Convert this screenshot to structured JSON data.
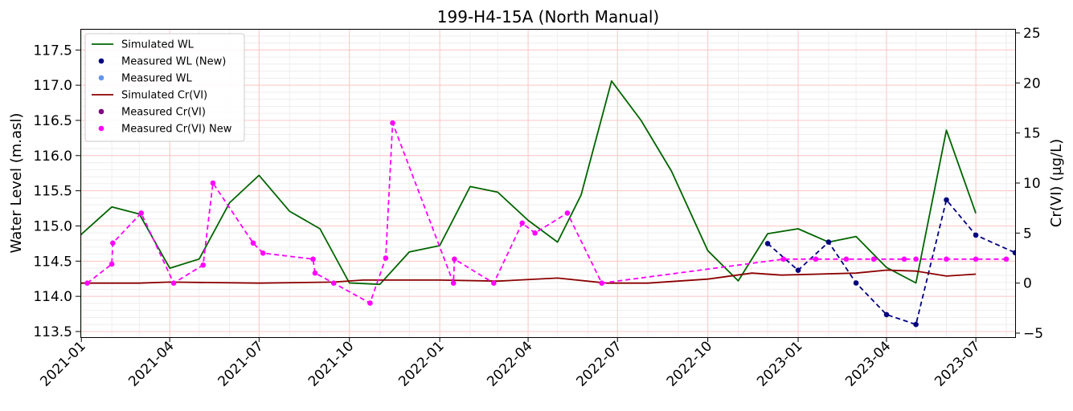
{
  "chart_data": {
    "type": "line",
    "title": "199-H4-15A (North Manual)",
    "ylabel": "Water Level (m.asl)",
    "y2label": "Cr(VI) (µg/L)",
    "xlim": [
      "2020-12-31",
      "2023-08-10"
    ],
    "ylim": [
      113.42,
      117.8
    ],
    "y2lim": [
      -5.4,
      25.4
    ],
    "x_ticks": [
      "2021-01",
      "2021-04",
      "2021-07",
      "2021-10",
      "2022-01",
      "2022-04",
      "2022-07",
      "2022-10",
      "2023-01",
      "2023-04",
      "2023-07"
    ],
    "y_ticks": [
      "113.5",
      "114.0",
      "114.5",
      "115.0",
      "115.5",
      "116.0",
      "116.5",
      "117.0",
      "117.5"
    ],
    "y2_ticks": [
      "−5",
      "0",
      "5",
      "10",
      "15",
      "20",
      "25"
    ],
    "grid": "major and minor",
    "legend_position": "upper left",
    "legend": [
      "Simulated WL",
      "Measured WL (New)",
      "Measured WL",
      "Simulated Cr(VI)",
      "Measured Cr(VI)",
      "Measured Cr(VI) New"
    ],
    "series": [
      {
        "name": "Simulated WL",
        "axis": "left",
        "style": "solid",
        "color": "#006400",
        "markers": false,
        "points": [
          [
            "2020-12-31",
            114.87
          ],
          [
            "2021-02-01",
            115.27
          ],
          [
            "2021-03-01",
            115.17
          ],
          [
            "2021-04-01",
            114.4
          ],
          [
            "2021-05-01",
            114.53
          ],
          [
            "2021-06-01",
            115.33
          ],
          [
            "2021-07-01",
            115.72
          ],
          [
            "2021-08-01",
            115.21
          ],
          [
            "2021-09-01",
            114.96
          ],
          [
            "2021-10-01",
            114.19
          ],
          [
            "2021-11-01",
            114.17
          ],
          [
            "2021-12-01",
            114.63
          ],
          [
            "2022-01-01",
            114.72
          ],
          [
            "2022-02-01",
            115.56
          ],
          [
            "2022-03-01",
            115.48
          ],
          [
            "2022-04-01",
            115.08
          ],
          [
            "2022-05-01",
            114.77
          ],
          [
            "2022-05-25",
            115.44
          ],
          [
            "2022-06-25",
            117.06
          ],
          [
            "2022-07-25",
            116.5
          ],
          [
            "2022-08-25",
            115.78
          ],
          [
            "2022-10-01",
            114.65
          ],
          [
            "2022-11-01",
            114.22
          ],
          [
            "2022-12-01",
            114.89
          ],
          [
            "2023-01-01",
            114.96
          ],
          [
            "2023-02-01",
            114.77
          ],
          [
            "2023-03-01",
            114.85
          ],
          [
            "2023-04-01",
            114.41
          ],
          [
            "2023-05-01",
            114.19
          ],
          [
            "2023-06-01",
            116.36
          ],
          [
            "2023-07-01",
            115.18
          ]
        ]
      },
      {
        "name": "Measured WL (New)",
        "axis": "left",
        "style": "dashed",
        "color": "#000080",
        "markers": true,
        "points": [
          [
            "2022-12-01",
            114.75
          ],
          [
            "2023-01-01",
            114.37
          ],
          [
            "2023-02-01",
            114.77
          ],
          [
            "2023-03-01",
            114.19
          ],
          [
            "2023-04-01",
            113.74
          ],
          [
            "2023-05-01",
            113.6
          ],
          [
            "2023-06-01",
            115.37
          ],
          [
            "2023-07-01",
            114.87
          ],
          [
            "2023-08-10",
            114.62
          ]
        ]
      },
      {
        "name": "Measured WL",
        "axis": "left",
        "style": "none",
        "color": "#6495ed",
        "markers": true,
        "points": []
      },
      {
        "name": "Simulated Cr(VI)",
        "axis": "right",
        "style": "solid",
        "color": "#8b0000",
        "markers": false,
        "points": [
          [
            "2020-12-31",
            0.0
          ],
          [
            "2021-03-01",
            0.0
          ],
          [
            "2021-04-01",
            0.1
          ],
          [
            "2021-07-01",
            0.0
          ],
          [
            "2021-09-15",
            0.1
          ],
          [
            "2021-10-15",
            0.3
          ],
          [
            "2022-01-01",
            0.3
          ],
          [
            "2022-03-01",
            0.2
          ],
          [
            "2022-05-01",
            0.5
          ],
          [
            "2022-06-20",
            0.0
          ],
          [
            "2022-08-01",
            0.0
          ],
          [
            "2022-10-01",
            0.4
          ],
          [
            "2022-11-15",
            1.0
          ],
          [
            "2022-12-15",
            0.8
          ],
          [
            "2023-03-01",
            1.0
          ],
          [
            "2023-04-01",
            1.3
          ],
          [
            "2023-05-01",
            1.2
          ],
          [
            "2023-06-01",
            0.7
          ],
          [
            "2023-07-01",
            0.9
          ]
        ]
      },
      {
        "name": "Measured Cr(VI)",
        "axis": "right",
        "style": "none",
        "color": "#800080",
        "markers": true,
        "points": []
      },
      {
        "name": "Measured Cr(VI) New",
        "axis": "right",
        "style": "dashed",
        "color": "#ff00ff",
        "markers": true,
        "points": [
          [
            "2021-01-07",
            0.0
          ],
          [
            "2021-02-01",
            1.9
          ],
          [
            "2021-02-02",
            4.0
          ],
          [
            "2021-03-03",
            7.0
          ],
          [
            "2021-04-05",
            0.0
          ],
          [
            "2021-05-05",
            1.8
          ],
          [
            "2021-05-15",
            10.0
          ],
          [
            "2021-06-25",
            4.0
          ],
          [
            "2021-07-05",
            3.0
          ],
          [
            "2021-08-25",
            2.4
          ],
          [
            "2021-08-27",
            1.0
          ],
          [
            "2021-09-15",
            0.0
          ],
          [
            "2021-10-22",
            -2.0
          ],
          [
            "2021-11-07",
            2.5
          ],
          [
            "2021-11-14",
            16.0
          ],
          [
            "2022-01-15",
            0.0
          ],
          [
            "2022-01-16",
            2.4
          ],
          [
            "2022-02-25",
            0.0
          ],
          [
            "2022-03-26",
            6.0
          ],
          [
            "2022-04-08",
            5.0
          ],
          [
            "2022-05-11",
            7.0
          ],
          [
            "2022-06-15",
            0.0
          ],
          [
            "2022-12-17",
            2.4
          ],
          [
            "2023-01-19",
            2.4
          ],
          [
            "2023-02-19",
            2.4
          ],
          [
            "2023-03-19",
            2.4
          ],
          [
            "2023-04-19",
            2.4
          ],
          [
            "2023-05-01",
            2.4
          ],
          [
            "2023-06-01",
            2.4
          ],
          [
            "2023-07-01",
            2.4
          ],
          [
            "2023-08-01",
            2.4
          ]
        ]
      }
    ]
  }
}
